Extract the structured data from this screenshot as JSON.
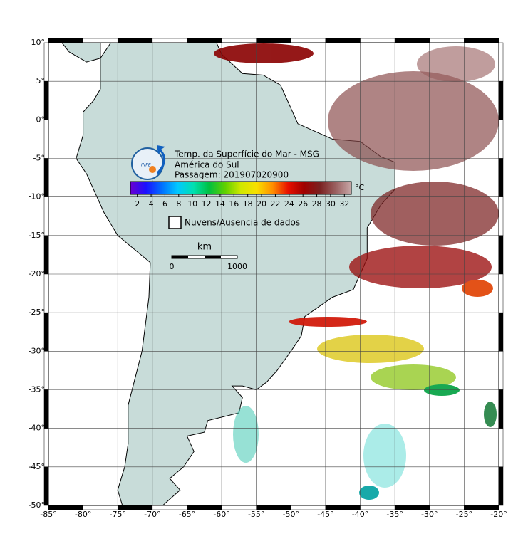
{
  "header": {
    "title": "Temp. da Superfície do Mar - MSG",
    "region": "América do Sul",
    "pass": "Passagem: 201907020900",
    "logo": "INPE"
  },
  "colorbar": {
    "range": [
      1,
      33
    ],
    "ticks": [
      2,
      4,
      6,
      8,
      10,
      12,
      14,
      16,
      18,
      20,
      22,
      24,
      26,
      28,
      30,
      32
    ],
    "unit": "°C",
    "colors": [
      "#6a00d0",
      "#1a10ff",
      "#0070ff",
      "#00c8ff",
      "#00e0b0",
      "#00c040",
      "#60d000",
      "#d0e800",
      "#f8e000",
      "#ff9000",
      "#e81000",
      "#a00000",
      "#7a2020",
      "#9a6060",
      "#c8a8a8"
    ]
  },
  "legend": {
    "no_data": "Nuvens/Ausencia de dados"
  },
  "scale_bar": {
    "unit": "km",
    "labels": [
      0,
      1000
    ]
  },
  "map": {
    "lon_range": [
      -85,
      -20
    ],
    "lat_range": [
      -50,
      10
    ],
    "lon_ticks": [
      {
        "value": -85,
        "label": "-85°"
      },
      {
        "value": -80,
        "label": "-80°"
      },
      {
        "value": -75,
        "label": "-75°"
      },
      {
        "value": -70,
        "label": "-70°"
      },
      {
        "value": -65,
        "label": "-65°"
      },
      {
        "value": -60,
        "label": "-60°"
      },
      {
        "value": -55,
        "label": "-55°"
      },
      {
        "value": -50,
        "label": "-50°"
      },
      {
        "value": -45,
        "label": "-45°"
      },
      {
        "value": -40,
        "label": "-40°"
      },
      {
        "value": -35,
        "label": "-35°"
      },
      {
        "value": -30,
        "label": "-30°"
      },
      {
        "value": -25,
        "label": "-25°"
      },
      {
        "value": -20,
        "label": "-20°"
      }
    ],
    "lat_ticks": [
      {
        "value": 10,
        "label": "10°"
      },
      {
        "value": 5,
        "label": "5°"
      },
      {
        "value": 0,
        "label": "0°"
      },
      {
        "value": -5,
        "label": "-5°"
      },
      {
        "value": -10,
        "label": "-10°"
      },
      {
        "value": -15,
        "label": "-15°"
      },
      {
        "value": -20,
        "label": "-20°"
      },
      {
        "value": -25,
        "label": "-25°"
      },
      {
        "value": -30,
        "label": "-30°"
      },
      {
        "value": -35,
        "label": "-35°"
      },
      {
        "value": -40,
        "label": "-40°"
      },
      {
        "value": -45,
        "label": "-45°"
      },
      {
        "value": -50,
        "label": "-50°"
      }
    ]
  }
}
